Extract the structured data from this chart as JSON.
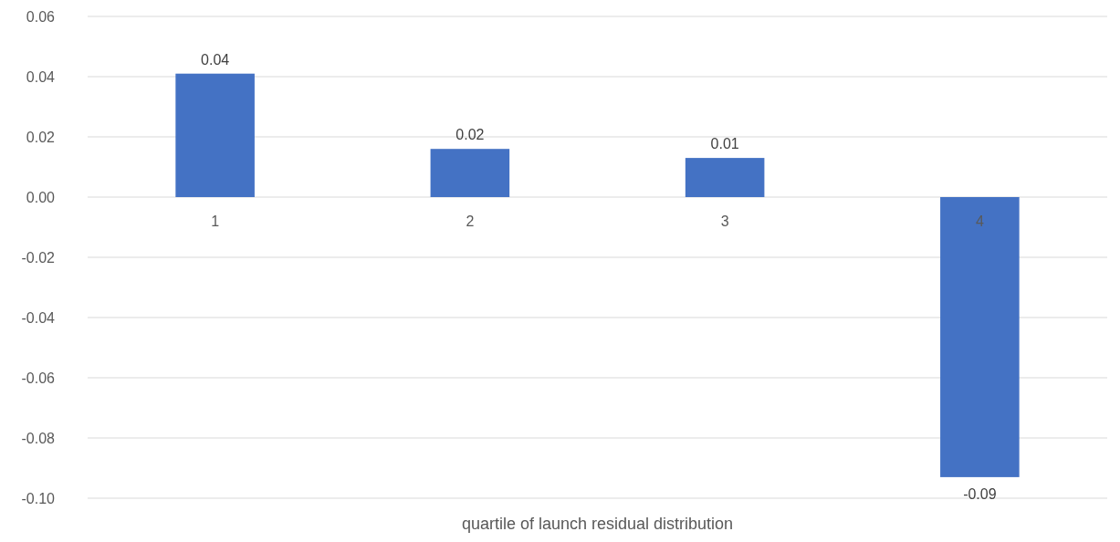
{
  "chart_data": {
    "type": "bar",
    "xlabel": "quartile of launch residual distribution",
    "categories": [
      "1",
      "2",
      "3",
      "4"
    ],
    "values": [
      0.041,
      0.016,
      0.013,
      -0.093
    ],
    "value_labels": [
      "0.04",
      "0.02",
      "0.01",
      "-0.09"
    ],
    "color": "#4472c4",
    "ylim": [
      -0.1,
      0.06
    ],
    "yticks": [
      {
        "value": -0.1,
        "label": "-0.10"
      },
      {
        "value": -0.08,
        "label": "-0.08"
      },
      {
        "value": -0.06,
        "label": "-0.06"
      },
      {
        "value": -0.04,
        "label": "-0.04"
      },
      {
        "value": -0.02,
        "label": "-0.02"
      },
      {
        "value": 0,
        "label": "0.00"
      },
      {
        "value": 0.02,
        "label": "0.02"
      },
      {
        "value": 0.04,
        "label": "0.04"
      },
      {
        "value": 0.06,
        "label": "0.06"
      }
    ],
    "grid": "y"
  }
}
